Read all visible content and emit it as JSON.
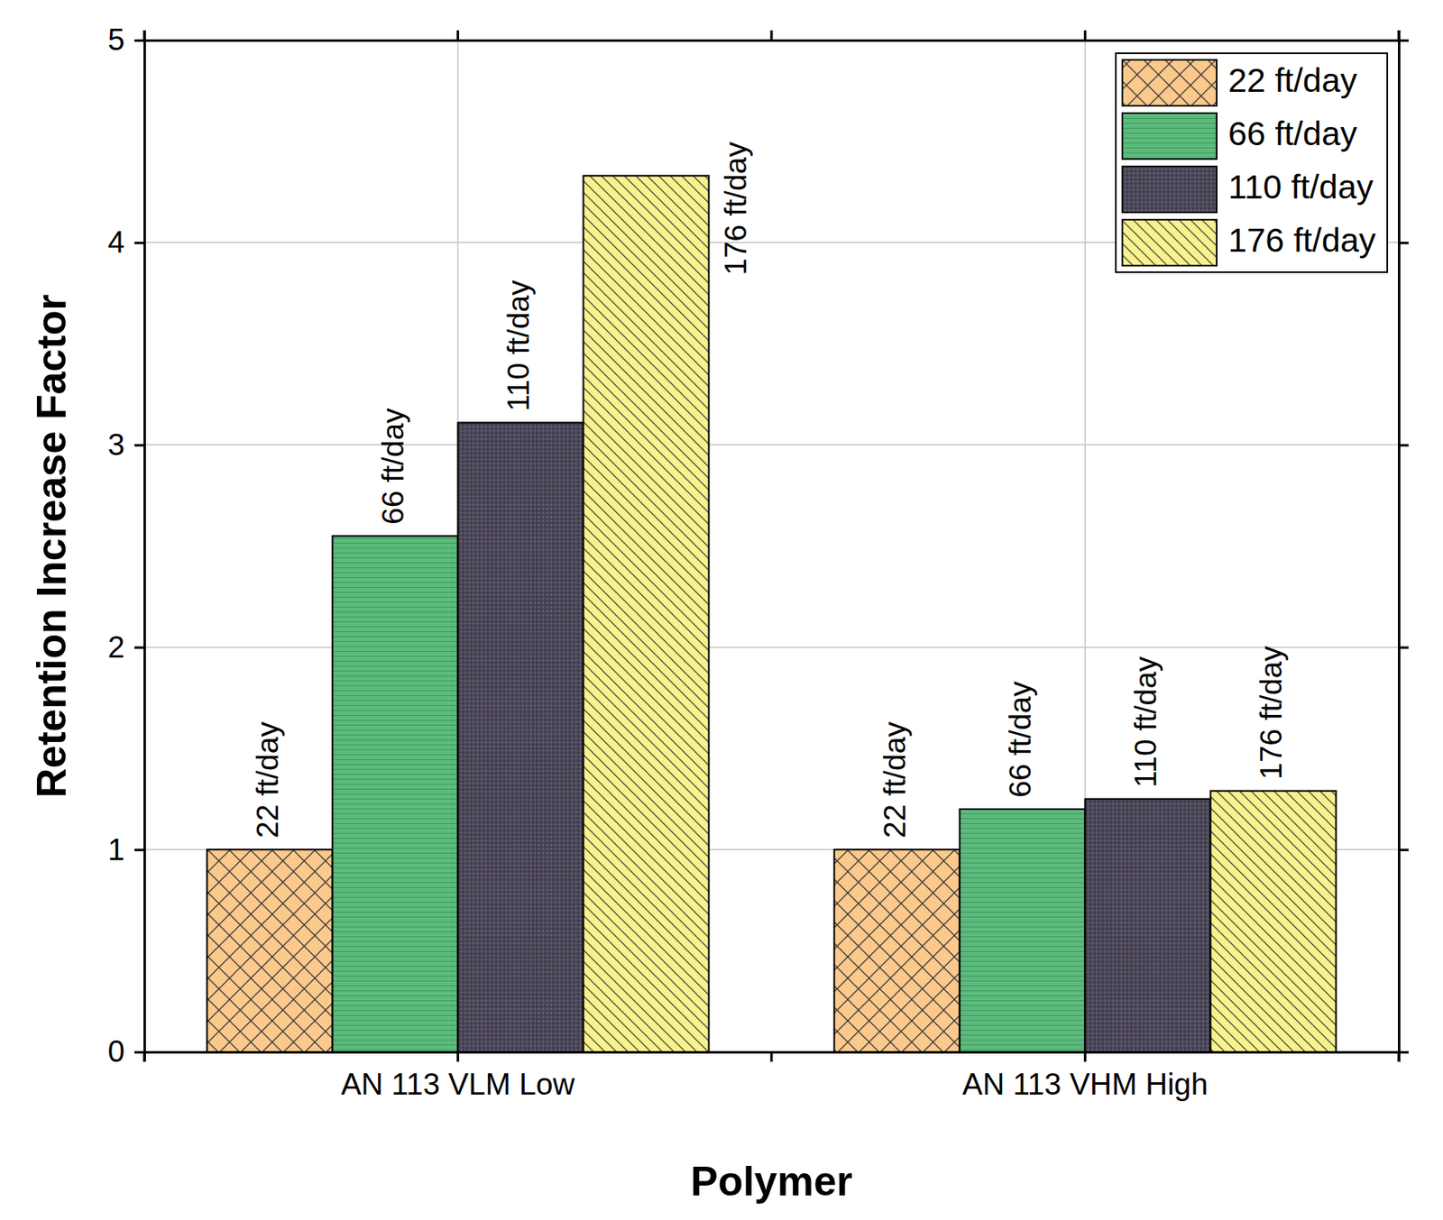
{
  "chart_data": {
    "type": "bar",
    "xlabel": "Polymer",
    "ylabel": "Retention Increase Factor",
    "categories": [
      "AN 113 VLM Low",
      "AN 113 VHM High"
    ],
    "series": [
      {
        "name": "22 ft/day",
        "color": "#fcc98c",
        "values": [
          1.0,
          1.0
        ]
      },
      {
        "name": "66 ft/day",
        "color": "#5dba7d",
        "values": [
          2.55,
          1.2
        ]
      },
      {
        "name": "110 ft/day",
        "color": "#4a4556",
        "values": [
          3.11,
          1.25
        ]
      },
      {
        "name": "176 ft/day",
        "color": "#f7f28e",
        "values": [
          4.33,
          1.29
        ]
      }
    ],
    "ylim": [
      0,
      5
    ],
    "yticks": [
      0,
      1,
      2,
      3,
      4,
      5
    ],
    "grid": true,
    "legend": "upper right"
  }
}
